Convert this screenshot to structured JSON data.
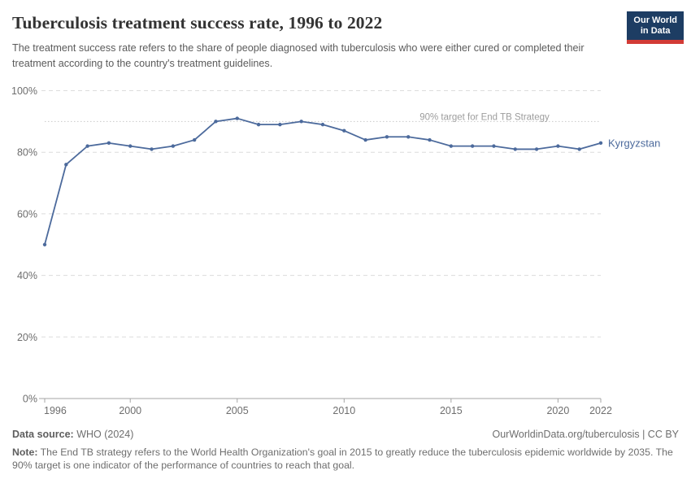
{
  "header": {
    "title": "Tuberculosis treatment success rate, 1996 to 2022",
    "subtitle": "The treatment success rate refers to the share of people diagnosed with tuberculosis who were either cured or completed their treatment according to the country's treatment guidelines.",
    "logo": {
      "line1": "Our World",
      "line2": "in Data"
    }
  },
  "chart_data": {
    "type": "line",
    "title": "Tuberculosis treatment success rate, 1996 to 2022",
    "xlabel": "",
    "ylabel": "",
    "xlim": [
      1996,
      2022
    ],
    "ylim": [
      0,
      100
    ],
    "x_ticks": [
      1996,
      2000,
      2005,
      2010,
      2015,
      2020,
      2022
    ],
    "y_ticks": [
      0,
      20,
      40,
      60,
      80,
      100
    ],
    "y_tick_suffix": "%",
    "grid": "horizontal-dashed",
    "legend_position": "end-of-line-label",
    "target_line": {
      "value": 90,
      "label": "90% target for End TB Strategy"
    },
    "end_label": "Kyrgyzstan",
    "series": [
      {
        "name": "Kyrgyzstan",
        "color": "#4C6A9C",
        "x": [
          1996,
          1997,
          1998,
          1999,
          2000,
          2001,
          2002,
          2003,
          2004,
          2005,
          2006,
          2007,
          2008,
          2009,
          2010,
          2011,
          2012,
          2013,
          2014,
          2015,
          2016,
          2017,
          2018,
          2019,
          2020,
          2021,
          2022
        ],
        "values": [
          50,
          76,
          82,
          83,
          82,
          81,
          82,
          84,
          90,
          91,
          89,
          89,
          90,
          89,
          87,
          84,
          85,
          85,
          84,
          82,
          82,
          82,
          81,
          81,
          82,
          81,
          83
        ]
      }
    ]
  },
  "footer": {
    "datasource_label": "Data source:",
    "datasource_value": " WHO (2024)",
    "link": "OurWorldinData.org/tuberculosis | CC BY",
    "note_label": "Note:",
    "note_value": " The End TB strategy refers to the World Health Organization's goal in 2015 to greatly reduce the tuberculosis epidemic worldwide by 2035. The 90% target is one indicator of the performance of countries to reach that goal."
  },
  "colors": {
    "line": "#4C6A9C",
    "logo_navy": "#1d3d63",
    "logo_red": "#d23b36",
    "grid": "#dcdcdc",
    "axis_text": "#6e6e6e",
    "target_text": "#9d9d9d"
  }
}
